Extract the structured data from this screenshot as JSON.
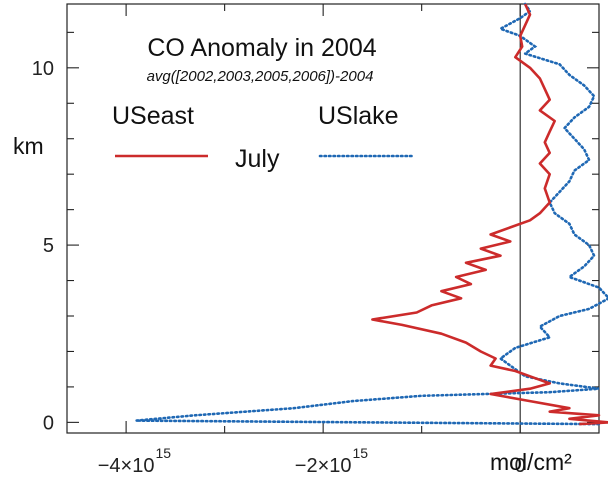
{
  "chart_data": {
    "type": "line",
    "title": "CO Anomaly in 2004",
    "subtitle": "avg([2002,2003,2005,2006])-2004",
    "month_label": "July",
    "xunit": "mol/cm²",
    "ylabel": "km",
    "xlim": [
      -4600000000000000.0,
      800000000000000.0
    ],
    "ylim": [
      -0.3,
      11.8
    ],
    "xticks": [
      {
        "value": -4000000000000000.0,
        "mant": "−4×10",
        "exp": "15"
      },
      {
        "value": -2000000000000000.0,
        "mant": "−2×10",
        "exp": "15"
      },
      {
        "value": 0,
        "mant": "0",
        "exp": ""
      }
    ],
    "yticks": [
      {
        "value": 0,
        "label": "0"
      },
      {
        "value": 5,
        "label": "5"
      },
      {
        "value": 10,
        "label": "10"
      }
    ],
    "colors": {
      "useast": "#cc2b2b",
      "uslake": "#1f68b4",
      "axis": "#222222"
    },
    "series": [
      {
        "name": "USeast",
        "style": "solid",
        "points": [
          [
            50000000000000.0,
            11.8
          ],
          [
            100000000000000.0,
            11.5
          ],
          [
            50000000000000.0,
            11.2
          ],
          [
            0.0,
            10.9
          ],
          [
            20000000000000.0,
            10.6
          ],
          [
            -50000000000000.0,
            10.3
          ],
          [
            100000000000000.0,
            10.0
          ],
          [
            200000000000000.0,
            9.7
          ],
          [
            250000000000000.0,
            9.4
          ],
          [
            300000000000000.0,
            9.1
          ],
          [
            200000000000000.0,
            8.8
          ],
          [
            350000000000000.0,
            8.5
          ],
          [
            300000000000000.0,
            8.2
          ],
          [
            250000000000000.0,
            7.9
          ],
          [
            300000000000000.0,
            7.6
          ],
          [
            200000000000000.0,
            7.3
          ],
          [
            300000000000000.0,
            7.0
          ],
          [
            250000000000000.0,
            6.6
          ],
          [
            300000000000000.0,
            6.2
          ],
          [
            200000000000000.0,
            5.9
          ],
          [
            100000000000000.0,
            5.7
          ],
          [
            -100000000000000.0,
            5.5
          ],
          [
            -300000000000000.0,
            5.3
          ],
          [
            -100000000000000.0,
            5.1
          ],
          [
            -400000000000000.0,
            4.9
          ],
          [
            -200000000000000.0,
            4.7
          ],
          [
            -550000000000000.0,
            4.5
          ],
          [
            -350000000000000.0,
            4.3
          ],
          [
            -650000000000000.0,
            4.1
          ],
          [
            -500000000000000.0,
            3.9
          ],
          [
            -800000000000000.0,
            3.7
          ],
          [
            -600000000000000.0,
            3.5
          ],
          [
            -900000000000000.0,
            3.3
          ],
          [
            -1050000000000000.0,
            3.1
          ],
          [
            -1500000000000000.0,
            2.9
          ],
          [
            -1200000000000000.0,
            2.75
          ],
          [
            -800000000000000.0,
            2.5
          ],
          [
            -550000000000000.0,
            2.25
          ],
          [
            -400000000000000.0,
            2.0
          ],
          [
            -250000000000000.0,
            1.8
          ],
          [
            -300000000000000.0,
            1.6
          ],
          [
            -50000000000000.0,
            1.45
          ],
          [
            100000000000000.0,
            1.3
          ],
          [
            300000000000000.0,
            1.1
          ],
          [
            100000000000000.0,
            0.95
          ],
          [
            -300000000000000.0,
            0.8
          ],
          [
            100000000000000.0,
            0.6
          ],
          [
            500000000000000.0,
            0.4
          ],
          [
            300000000000000.0,
            0.3
          ],
          [
            800000000000000.0,
            0.2
          ],
          [
            500000000000000.0,
            0.1
          ],
          [
            900000000000000.0,
            0.0
          ],
          [
            600000000000000.0,
            -0.05
          ]
        ]
      },
      {
        "name": "USlake",
        "style": "dotted",
        "points": [
          [
            50000000000000.0,
            11.8
          ],
          [
            100000000000000.0,
            11.6
          ],
          [
            0.0,
            11.4
          ],
          [
            -200000000000000.0,
            11.1
          ],
          [
            0.0,
            10.9
          ],
          [
            150000000000000.0,
            10.6
          ],
          [
            50000000000000.0,
            10.4
          ],
          [
            400000000000000.0,
            10.1
          ],
          [
            500000000000000.0,
            9.8
          ],
          [
            650000000000000.0,
            9.5
          ],
          [
            750000000000000.0,
            9.2
          ],
          [
            700000000000000.0,
            8.9
          ],
          [
            550000000000000.0,
            8.6
          ],
          [
            450000000000000.0,
            8.3
          ],
          [
            550000000000000.0,
            8.0
          ],
          [
            650000000000000.0,
            7.7
          ],
          [
            700000000000000.0,
            7.4
          ],
          [
            550000000000000.0,
            7.1
          ],
          [
            500000000000000.0,
            6.8
          ],
          [
            400000000000000.0,
            6.5
          ],
          [
            300000000000000.0,
            6.2
          ],
          [
            350000000000000.0,
            5.9
          ],
          [
            500000000000000.0,
            5.6
          ],
          [
            550000000000000.0,
            5.3
          ],
          [
            700000000000000.0,
            5.0
          ],
          [
            750000000000000.0,
            4.7
          ],
          [
            650000000000000.0,
            4.4
          ],
          [
            500000000000000.0,
            4.1
          ],
          [
            800000000000000.0,
            3.8
          ],
          [
            900000000000000.0,
            3.5
          ],
          [
            700000000000000.0,
            3.2
          ],
          [
            400000000000000.0,
            3.0
          ],
          [
            200000000000000.0,
            2.7
          ],
          [
            300000000000000.0,
            2.4
          ],
          [
            -50000000000000.0,
            2.1
          ],
          [
            -200000000000000.0,
            1.8
          ],
          [
            -100000000000000.0,
            1.6
          ],
          [
            50000000000000.0,
            1.3
          ],
          [
            400000000000000.0,
            1.1
          ],
          [
            800000000000000.0,
            0.95
          ],
          [
            300000000000000.0,
            0.85
          ],
          [
            -1000000000000000.0,
            0.75
          ],
          [
            -1700000000000000.0,
            0.6
          ],
          [
            -2300000000000000.0,
            0.4
          ],
          [
            -3300000000000000.0,
            0.2
          ],
          [
            -3900000000000000.0,
            0.05
          ],
          [
            -1500000000000000.0,
            0.0
          ],
          [
            800000000000000.0,
            -0.05
          ]
        ]
      }
    ]
  }
}
